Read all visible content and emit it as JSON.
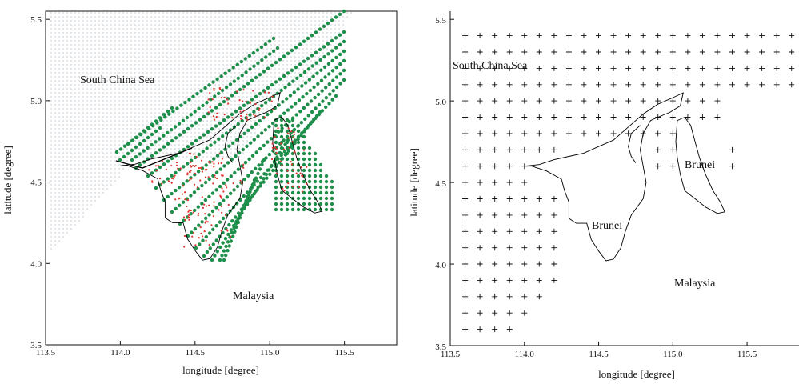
{
  "chart_data": [
    {
      "type": "scatter",
      "title": "",
      "xlabel": "longitude [degree]",
      "ylabel": "latitude [degree]",
      "xlim": [
        113.5,
        115.85
      ],
      "ylim": [
        3.5,
        5.55
      ],
      "xticks": [
        "113.5",
        "114.0",
        "114.5",
        "115.0",
        "115.5"
      ],
      "yticks": [
        "3.5",
        "4.0",
        "4.5",
        "5.0",
        "5.5"
      ],
      "grid": false,
      "legend": "none",
      "annotations": [
        {
          "text": "South China Sea",
          "x": 113.82,
          "y": 5.08
        },
        {
          "text": "Malaysia",
          "x": 114.85,
          "y": 3.77
        }
      ],
      "colors": {
        "land_dots": "#1e8f4a",
        "stations": "#e0312c",
        "sea_grid": "#9aa8b8",
        "coast": "#000000"
      },
      "series": [
        {
          "marker": "green-dot",
          "description_tracks": [
            {
              "start": [
                114.0,
                4.6
              ],
              "end": [
                114.62,
                3.98
              ],
              "direction": "along-track"
            },
            {
              "start": [
                115.5,
                5.52
              ],
              "end": [
                114.03,
                4.62
              ]
            },
            {
              "start": [
                115.35,
                5.33
              ],
              "end": [
                114.12,
                4.58
              ]
            },
            {
              "start": [
                115.52,
                5.38
              ],
              "end": [
                114.05,
                4.52
              ]
            },
            {
              "start": [
                115.52,
                5.26
              ],
              "end": [
                114.08,
                4.45
              ]
            }
          ]
        }
      ],
      "track_lines": {
        "p1": [
          114.97,
          5.36
        ],
        "dir": [
          -0.6,
          -0.35
        ],
        "n": 14,
        "spacing": 0.055,
        "length_steps": 42
      },
      "east_patch": {
        "lon": [
          115.0,
          115.38
        ],
        "lat": [
          4.28,
          4.88
        ]
      },
      "boundary_west": [
        [
          114.0,
          4.6
        ],
        [
          114.1,
          4.61
        ],
        [
          114.2,
          4.64
        ],
        [
          114.3,
          4.66
        ],
        [
          114.4,
          4.68
        ],
        [
          114.5,
          4.72
        ],
        [
          114.6,
          4.76
        ],
        [
          114.7,
          4.84
        ],
        [
          114.8,
          4.92
        ],
        [
          114.9,
          4.98
        ],
        [
          115.0,
          5.02
        ],
        [
          115.07,
          5.05
        ],
        [
          115.05,
          4.97
        ],
        [
          114.98,
          4.93
        ],
        [
          114.9,
          4.9
        ],
        [
          114.85,
          4.88
        ],
        [
          114.8,
          4.8
        ],
        [
          114.78,
          4.7
        ],
        [
          114.8,
          4.6
        ],
        [
          114.82,
          4.5
        ],
        [
          114.8,
          4.4
        ],
        [
          114.72,
          4.3
        ],
        [
          114.68,
          4.2
        ],
        [
          114.65,
          4.1
        ],
        [
          114.6,
          4.03
        ],
        [
          114.55,
          4.02
        ],
        [
          114.5,
          4.08
        ],
        [
          114.45,
          4.15
        ],
        [
          114.42,
          4.25
        ],
        [
          114.35,
          4.25
        ],
        [
          114.3,
          4.28
        ],
        [
          114.3,
          4.38
        ],
        [
          114.27,
          4.45
        ],
        [
          114.25,
          4.52
        ],
        [
          114.15,
          4.57
        ],
        [
          114.05,
          4.6
        ],
        [
          114.0,
          4.6
        ]
      ],
      "boundary_inner": [
        [
          114.75,
          4.62
        ],
        [
          114.72,
          4.66
        ],
        [
          114.7,
          4.72
        ],
        [
          114.72,
          4.8
        ],
        [
          114.78,
          4.85
        ]
      ],
      "boundary_east": [
        [
          115.03,
          4.88
        ],
        [
          115.08,
          4.9
        ],
        [
          115.12,
          4.85
        ],
        [
          115.15,
          4.75
        ],
        [
          115.18,
          4.65
        ],
        [
          115.22,
          4.55
        ],
        [
          115.27,
          4.45
        ],
        [
          115.32,
          4.38
        ],
        [
          115.35,
          4.32
        ],
        [
          115.3,
          4.31
        ],
        [
          115.22,
          4.35
        ],
        [
          115.15,
          4.4
        ],
        [
          115.08,
          4.45
        ],
        [
          115.05,
          4.55
        ],
        [
          115.03,
          4.65
        ],
        [
          115.02,
          4.75
        ],
        [
          115.03,
          4.88
        ]
      ]
    },
    {
      "type": "scatter",
      "title": "",
      "xlabel": "longitude [degree]",
      "ylabel": "latitude [degree]",
      "xlim": [
        113.5,
        115.85
      ],
      "ylim": [
        3.5,
        5.55
      ],
      "xticks": [
        "113.5",
        "114.0",
        "114.5",
        "115.0",
        "115.5"
      ],
      "yticks": [
        "3.5",
        "4.0",
        "4.5",
        "5.0",
        "5.5"
      ],
      "grid": false,
      "legend": "none",
      "annotations": [
        {
          "text": "South China Sea",
          "x": 113.53,
          "y": 5.18
        },
        {
          "text": "Brunei",
          "x": 114.47,
          "y": 4.22
        },
        {
          "text": "Brunei",
          "x": 115.05,
          "y": 4.58
        },
        {
          "text": "Malaysia",
          "x": 115.0,
          "y": 3.85
        }
      ],
      "grid_points": {
        "marker": "+",
        "lon_step": 0.1,
        "lat_step": 0.1
      }
    }
  ]
}
